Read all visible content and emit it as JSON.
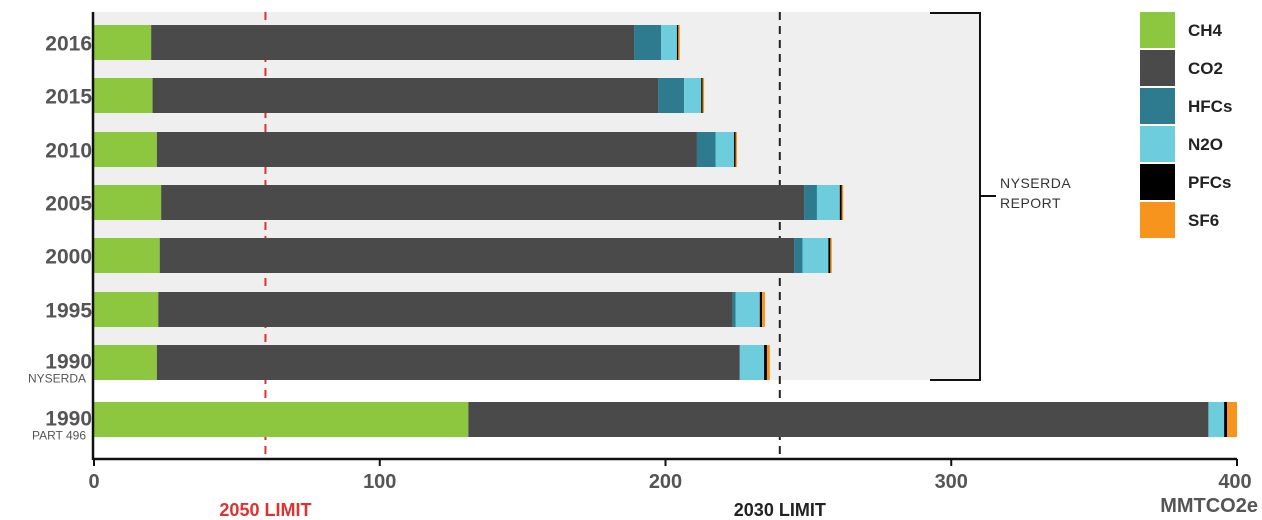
{
  "chart_data": {
    "type": "bar",
    "orientation": "horizontal",
    "stacked": true,
    "xlabel": "MMTCO2e",
    "xlim": [
      0,
      400
    ],
    "x_ticks": [
      0,
      100,
      200,
      300,
      400
    ],
    "grid": false,
    "legend_position": "top-right",
    "categories": [
      {
        "label": "2016",
        "sublabel": ""
      },
      {
        "label": "2015",
        "sublabel": ""
      },
      {
        "label": "2010",
        "sublabel": ""
      },
      {
        "label": "2005",
        "sublabel": ""
      },
      {
        "label": "2000",
        "sublabel": ""
      },
      {
        "label": "1995",
        "sublabel": ""
      },
      {
        "label": "1990",
        "sublabel": "NYSERDA"
      },
      {
        "label": "1990",
        "sublabel": "PART 496"
      }
    ],
    "series": [
      {
        "name": "CH4",
        "color": "#8dc63f",
        "values": [
          20,
          20.5,
          22,
          23.5,
          23,
          22.5,
          22,
          131
        ]
      },
      {
        "name": "CO2",
        "color": "#4a4a4a",
        "values": [
          169,
          177,
          189,
          225,
          222,
          201,
          204,
          259
        ]
      },
      {
        "name": "HFCs",
        "color": "#2e7a8e",
        "values": [
          9.5,
          9,
          6.5,
          4.5,
          3,
          1,
          0,
          0
        ]
      },
      {
        "name": "N2O",
        "color": "#6dcddd",
        "values": [
          5.5,
          6,
          6.5,
          8,
          9,
          8.5,
          8.5,
          5.5
        ]
      },
      {
        "name": "PFCs",
        "color": "#000000",
        "values": [
          0.5,
          0.5,
          0.5,
          0.7,
          0.7,
          0.8,
          1,
          1
        ]
      },
      {
        "name": "SF6",
        "color": "#f7941d",
        "values": [
          0.5,
          0.5,
          0.5,
          0.5,
          0.5,
          1,
          1,
          3.5
        ]
      }
    ],
    "reference_lines": [
      {
        "label": "2050 LIMIT",
        "value": 60,
        "color": "#e0312f"
      },
      {
        "label": "2030 LIMIT",
        "value": 240,
        "color": "#222222"
      }
    ],
    "annotation": {
      "label": [
        "NYSERDA",
        "REPORT"
      ],
      "note": "bracket spanning 2016 through 1990 NYSERDA bars"
    }
  }
}
